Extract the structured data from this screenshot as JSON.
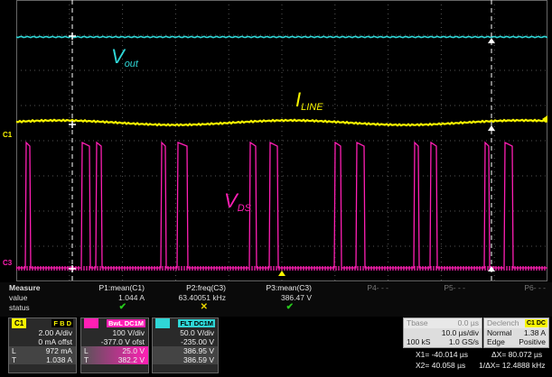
{
  "waveform_labels": {
    "vout": {
      "main": "V",
      "sub": "out"
    },
    "iline": {
      "main": "I",
      "sub": "LINE"
    },
    "vds": {
      "main": "V",
      "sub": "DS"
    }
  },
  "channel_markers": {
    "c1": "C1",
    "c3": "C3"
  },
  "colors": {
    "ch1": "#f7f400",
    "ch2_vout": "#2fd6d6",
    "ch3": "#ff1fb4",
    "grid": "#555555",
    "cursor": "#ffffff",
    "background": "#000000"
  },
  "measure": {
    "header": "Measure",
    "row_value": "value",
    "row_status": "status",
    "params": [
      {
        "name": "P1:mean(C1)",
        "value": "1.044 A",
        "status": "✔",
        "status_color": "#27c91c"
      },
      {
        "name": "P2:freq(C3)",
        "value": "63.40051 kHz",
        "status": "✕",
        "status_color": "#e6d200"
      },
      {
        "name": "P3:mean(C3)",
        "value": "386.47 V",
        "status": "✔",
        "status_color": "#27c91c"
      },
      {
        "name": "P4- - -",
        "value": "",
        "status": ""
      },
      {
        "name": "P5- - -",
        "value": "",
        "status": ""
      },
      {
        "name": "P6- - -",
        "value": "",
        "status": ""
      }
    ]
  },
  "channels": [
    {
      "name": "C1",
      "tags": [
        "F",
        "B",
        "D"
      ],
      "color": "#f7f400",
      "scale": "2.00 A/div",
      "offset": "0 mA offst",
      "l_label": "L",
      "l_value": "972 mA",
      "t_label": "T",
      "t_value": "1.038 A"
    },
    {
      "name": "",
      "tags": [
        "BwL",
        "DC1M"
      ],
      "color": "#ff1fb4",
      "scale": "100 V/div",
      "offset": "-377.0 V ofst",
      "l_label": "L",
      "l_value": "25.0 V",
      "t_label": "T",
      "t_value": "382.2 V"
    },
    {
      "name": "",
      "tags": [
        "FLT",
        "DC1M"
      ],
      "color": "#2fd6d6",
      "scale": "50.0 V/div",
      "offset": "-235.00 V",
      "l_label": "",
      "l_value": "386.95 V",
      "t_label": "",
      "t_value": "386.59 V"
    }
  ],
  "timebase": {
    "label": "Tbase",
    "delay": "0.0 µs",
    "per_div": "10.0 µs/div",
    "samples": "100 kS",
    "rate": "1.0 GS/s"
  },
  "trigger": {
    "label": "Declench",
    "tag": "C1 DC",
    "mode": "Normal",
    "level": "1.38 A",
    "type": "Edge",
    "slope": "Positive"
  },
  "cursors": {
    "x1": "X1= -40.014 µs",
    "dx": "ΔX= 80.072 µs",
    "x2": "X2= 40.058 µs",
    "inv_dx": "1/ΔX= 12.4888 kHz"
  }
}
